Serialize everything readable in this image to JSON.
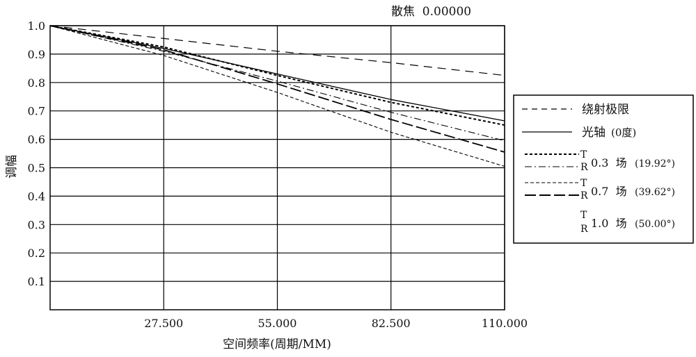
{
  "chart_data": {
    "type": "line",
    "title": "散焦  0.00000",
    "xlabel": "空间频率(周期/MM)",
    "ylabel": "调幅",
    "xlim": [
      0,
      110
    ],
    "ylim": [
      0,
      1.0
    ],
    "x_ticks": [
      27.5,
      55.0,
      82.5,
      110.0
    ],
    "x_tick_labels": [
      "27.500",
      "55.000",
      "82.500",
      "110.000"
    ],
    "y_ticks": [
      0.1,
      0.2,
      0.3,
      0.4,
      0.5,
      0.6,
      0.7,
      0.8,
      0.9,
      1.0
    ],
    "y_tick_labels": [
      "0.1",
      "0.2",
      "0.3",
      "0.4",
      "0.5",
      "0.6",
      "0.7",
      "0.8",
      "0.9",
      "1.0"
    ],
    "grid": true,
    "legend_position": "right",
    "legend": {
      "diffraction_label": "绕射极限",
      "axis_label": "光轴",
      "axis_suffix": "(0度)",
      "tan_mark": "T",
      "rad_mark": "R",
      "fields": [
        {
          "label": "0.3  场",
          "angle": "(19.92°)"
        },
        {
          "label": "0.7  场",
          "angle": "(39.62°)"
        },
        {
          "label": "1.0  场",
          "angle": "(50.00°)"
        }
      ]
    },
    "series": [
      {
        "name": "绕射极限",
        "style": "dash",
        "x": [
          0,
          27.5,
          55,
          82.5,
          110
        ],
        "y": [
          1.0,
          0.955,
          0.91,
          0.87,
          0.825
        ]
      },
      {
        "name": "光轴",
        "style": "solid",
        "x": [
          0,
          27.5,
          55,
          82.5,
          110
        ],
        "y": [
          1.0,
          0.92,
          0.83,
          0.74,
          0.665
        ]
      },
      {
        "style": "dense-dash",
        "x": [
          0,
          27.5,
          55,
          82.5,
          110
        ],
        "y": [
          1.0,
          0.925,
          0.825,
          0.73,
          0.65
        ]
      },
      {
        "style": "dash-dot",
        "x": [
          0,
          27.5,
          55,
          82.5,
          110
        ],
        "y": [
          1.0,
          0.91,
          0.805,
          0.695,
          0.595
        ]
      },
      {
        "style": "short-dash",
        "x": [
          0,
          27.5,
          55,
          82.5,
          110
        ],
        "y": [
          1.0,
          0.895,
          0.765,
          0.625,
          0.505
        ]
      },
      {
        "style": "long-dash",
        "x": [
          0,
          27.5,
          55,
          82.5,
          110
        ],
        "y": [
          1.0,
          0.915,
          0.795,
          0.67,
          0.555
        ]
      }
    ]
  }
}
